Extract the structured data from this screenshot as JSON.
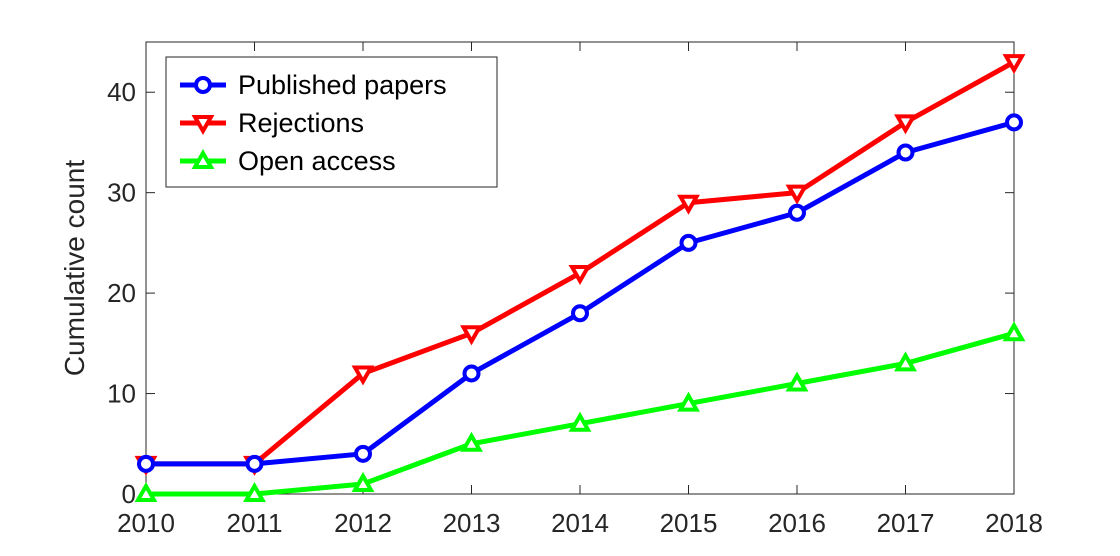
{
  "chart_data": {
    "type": "line",
    "title": "",
    "xlabel": "",
    "ylabel": "Cumulative count",
    "x": [
      2010,
      2011,
      2012,
      2013,
      2014,
      2015,
      2016,
      2017,
      2018
    ],
    "xlim": [
      2010,
      2018
    ],
    "ylim": [
      0,
      45
    ],
    "yticks": [
      0,
      10,
      20,
      30,
      40
    ],
    "grid": false,
    "legend_position": "top-left",
    "series": [
      {
        "name": "Published papers",
        "color": "#0000ff",
        "marker": "circle",
        "values": [
          3,
          3,
          4,
          12,
          18,
          25,
          28,
          34,
          37
        ]
      },
      {
        "name": "Rejections",
        "color": "#ff0000",
        "marker": "triangle-down",
        "values": [
          3,
          3,
          12,
          16,
          22,
          29,
          30,
          37,
          43
        ]
      },
      {
        "name": "Open access",
        "color": "#00ff00",
        "marker": "triangle-up",
        "values": [
          0,
          0,
          1,
          5,
          7,
          9,
          11,
          13,
          16
        ]
      }
    ]
  }
}
